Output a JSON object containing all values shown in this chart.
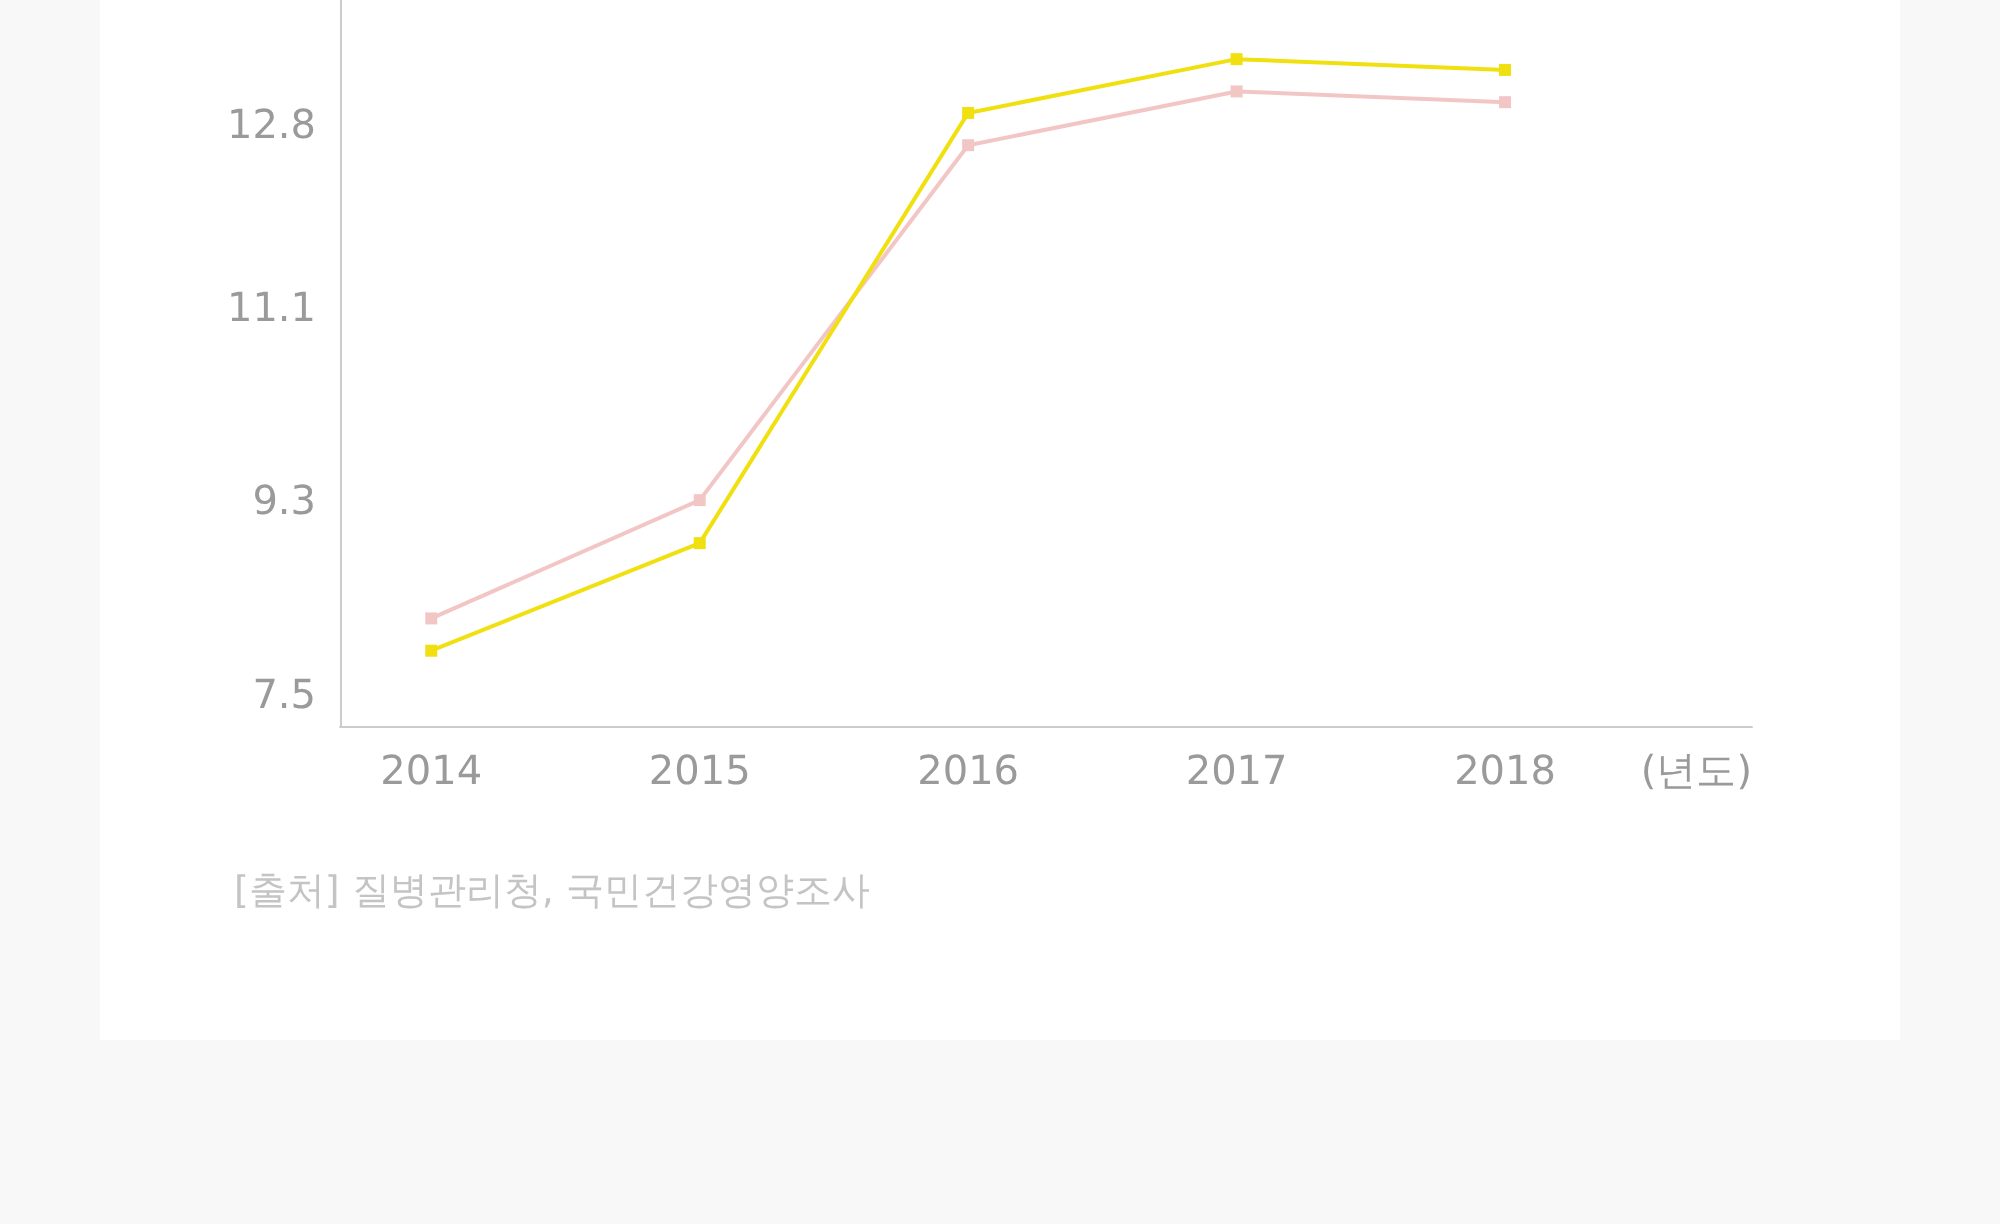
{
  "chart_data": {
    "type": "line",
    "x": [
      2014,
      2015,
      2016,
      2017,
      2018
    ],
    "series": [
      {
        "color": "#f3c6c6",
        "values": [
          8.2,
          9.3,
          12.6,
          13.1,
          13.0
        ]
      },
      {
        "color": "#f0e010",
        "values": [
          7.9,
          8.9,
          12.9,
          13.4,
          13.3
        ]
      }
    ],
    "xlim": [
      2013.66,
      2018.92
    ],
    "xticks": [
      2014,
      2015,
      2016,
      2017,
      2018
    ],
    "ylim": [
      7.2,
      13.95
    ],
    "yticks": [
      7.5,
      9.3,
      11.1,
      12.8
    ],
    "xlabel": "(년도)",
    "marker": "square",
    "line_style": "solid",
    "annotations": [
      "[출처] 질병관리청, 국민건강영양조사"
    ]
  }
}
